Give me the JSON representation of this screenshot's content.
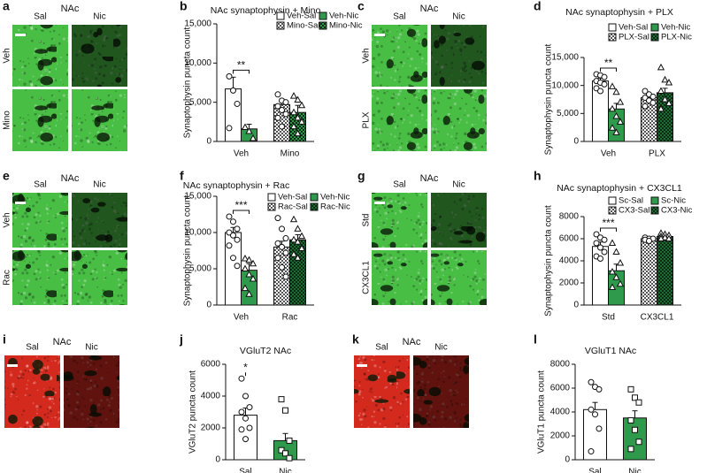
{
  "panels": [
    {
      "letter": "a",
      "region": "NAc",
      "columns": [
        "Sal",
        "Nic"
      ],
      "rows": [
        "Veh",
        "Mino"
      ],
      "color": "#49be45"
    },
    {
      "letter": "c",
      "region": "NAc",
      "columns": [
        "Sal",
        "Nic"
      ],
      "rows": [
        "Veh",
        "PLX"
      ],
      "color": "#49be45"
    },
    {
      "letter": "e",
      "region": "NAc",
      "columns": [
        "Sal",
        "Nic"
      ],
      "rows": [
        "Veh",
        "Rac"
      ],
      "color": "#49be45"
    },
    {
      "letter": "g",
      "region": "NAc",
      "columns": [
        "Sal",
        "Nic"
      ],
      "rows": [
        "Std",
        "CX3CL1"
      ],
      "color": "#49be45"
    },
    {
      "letter": "i",
      "region": "NAc",
      "columns": [
        "Sal",
        "Nic"
      ],
      "color": "#d42a1e"
    },
    {
      "letter": "k",
      "region": "NAc",
      "columns": [
        "Sal",
        "Nic"
      ],
      "color": "#d42a1e"
    }
  ],
  "chart_data": [
    {
      "type": "bar",
      "letter": "b",
      "title": "NAc synaptophysin + Mino",
      "y_label": "Synaptophysin puncta count",
      "categories": [
        "Veh",
        "Mino"
      ],
      "significance": "**",
      "ylim": [
        0,
        15000
      ],
      "yticks": [
        0,
        {
          "value": 5000,
          "label": "5,000"
        },
        {
          "value": 10000,
          "label": "10,000"
        },
        {
          "value": 15000,
          "label": "15,000"
        }
      ],
      "series": [
        {
          "name": "Veh-Sal",
          "color": "#ffffff",
          "marker": "circle",
          "values": [
            6700,
            null
          ],
          "errors": [
            1500,
            null
          ],
          "points": [
            [
              8300,
              6500,
              4800,
              1700
            ],
            null
          ]
        },
        {
          "name": "Veh-Nic",
          "color": "#2f9a4c",
          "marker": "triangle",
          "values": [
            1600,
            null
          ],
          "errors": [
            600,
            null
          ],
          "points": [
            [
              1800,
              1300,
              400
            ],
            null
          ]
        },
        {
          "name": "Mino-Sal",
          "color": "#ffffff",
          "pattern": "checker",
          "marker": "circle",
          "values": [
            null,
            4700
          ],
          "errors": [
            null,
            700
          ],
          "points": [
            null,
            [
              6000,
              5200,
              5000,
              4500,
              4000,
              3500,
              3000,
              1900
            ]
          ]
        },
        {
          "name": "Mino-Nic",
          "color": "#2f9a4c",
          "pattern": "checker",
          "marker": "triangle",
          "values": [
            null,
            3700
          ],
          "errors": [
            null,
            900
          ],
          "points": [
            null,
            [
              5800,
              5300,
              4600,
              3700,
              3000,
              2500,
              1900,
              1000
            ]
          ]
        }
      ]
    },
    {
      "type": "bar",
      "letter": "d",
      "title": "NAc synaptophysin + PLX",
      "y_label": "Synaptophysin puncta count",
      "categories": [
        "Veh",
        "PLX"
      ],
      "significance": "**",
      "ylim": [
        0,
        15000
      ],
      "yticks": [
        0,
        {
          "value": 5000,
          "label": "5,000"
        },
        {
          "value": 10000,
          "label": "10,000"
        },
        {
          "value": 15000,
          "label": "15,000"
        }
      ],
      "series": [
        {
          "name": "Veh-Sal",
          "color": "#ffffff",
          "marker": "circle",
          "values": [
            10800,
            null
          ],
          "errors": [
            500,
            null
          ],
          "points": [
            [
              12000,
              11800,
              11500,
              10800,
              10500,
              10200,
              9500,
              9000
            ],
            null
          ]
        },
        {
          "name": "Veh-Nic",
          "color": "#2f9a4c",
          "marker": "triangle",
          "values": [
            5800,
            null
          ],
          "errors": [
            1000,
            null
          ],
          "points": [
            [
              9800,
              8800,
              7000,
              5800,
              4500,
              3500,
              2400,
              1600
            ],
            null
          ]
        },
        {
          "name": "PLX-Sal",
          "color": "#ffffff",
          "pattern": "checker",
          "marker": "circle",
          "values": [
            null,
            7800
          ],
          "errors": [
            null,
            500
          ],
          "points": [
            null,
            [
              9000,
              8400,
              8000,
              7800,
              7300,
              6900,
              6300
            ]
          ]
        },
        {
          "name": "PLX-Nic",
          "color": "#1e6b33",
          "pattern": "checker",
          "marker": "triangle",
          "values": [
            null,
            8700
          ],
          "errors": [
            null,
            800
          ],
          "points": [
            null,
            [
              13200,
              11000,
              10500,
              9000,
              7500,
              6800,
              5800
            ]
          ]
        }
      ]
    },
    {
      "type": "bar",
      "letter": "f",
      "title": "NAc synaptophysin + Rac",
      "y_label": "Synaptophysin puncta  count",
      "categories": [
        "Veh",
        "Rac"
      ],
      "significance": "***",
      "ylim": [
        0,
        15000
      ],
      "yticks": [
        0,
        {
          "value": 5000,
          "label": "5,000"
        },
        {
          "value": 10000,
          "label": "10,000"
        },
        {
          "value": 15000,
          "label": "15,000"
        }
      ],
      "series": [
        {
          "name": "Veh-Sal",
          "color": "#ffffff",
          "marker": "circle",
          "values": [
            10000,
            null
          ],
          "errors": [
            700,
            null
          ],
          "points": [
            [
              12200,
              11500,
              10500,
              10000,
              9600,
              9000,
              8200,
              6500,
              5400
            ],
            null
          ]
        },
        {
          "name": "Veh-Nic",
          "color": "#2f9a4c",
          "marker": "triangle",
          "values": [
            4800,
            null
          ],
          "errors": [
            900,
            null
          ],
          "points": [
            [
              6400,
              6200,
              5700,
              5000,
              4200,
              3600,
              2300,
              1500
            ],
            null
          ]
        },
        {
          "name": "Rac-Sal",
          "color": "#ffffff",
          "pattern": "checker",
          "marker": "circle",
          "values": [
            null,
            8000
          ],
          "errors": [
            null,
            800
          ],
          "points": [
            null,
            [
              12000,
              10500,
              9200,
              8500,
              8000,
              7200,
              6500,
              5200,
              3900
            ]
          ]
        },
        {
          "name": "Rac-Nic",
          "color": "#1e6b33",
          "pattern": "checker",
          "marker": "triangle",
          "values": [
            null,
            9000
          ],
          "errors": [
            null,
            700
          ],
          "points": [
            null,
            [
              11800,
              10500,
              9500,
              9000,
              8700,
              7800,
              7000,
              6500
            ]
          ]
        }
      ]
    },
    {
      "type": "bar",
      "letter": "h",
      "title": "NAc synaptophysin + CX3CL1",
      "y_label": "Synaptophysin puncta count",
      "categories": [
        "Std",
        "CX3CL1"
      ],
      "significance": "***",
      "ylim": [
        0,
        8000
      ],
      "yticks": [
        0,
        2000,
        4000,
        6000,
        8000
      ],
      "series": [
        {
          "name": "Sc-Sal",
          "color": "#ffffff",
          "marker": "circle",
          "values": [
            5300,
            null
          ],
          "errors": [
            400,
            null
          ],
          "points": [
            [
              6400,
              6100,
              5900,
              5600,
              5200,
              4800,
              4400,
              4200
            ],
            null
          ]
        },
        {
          "name": "Sc-Nic",
          "color": "#2f9a4c",
          "marker": "triangle",
          "values": [
            3100,
            null
          ],
          "errors": [
            600,
            null
          ],
          "points": [
            [
              5600,
              4800,
              3800,
              3000,
              2500,
              1900,
              1600
            ],
            null
          ]
        },
        {
          "name": "CX3-Sal",
          "color": "#ffffff",
          "pattern": "checker",
          "marker": "circle",
          "values": [
            null,
            6000
          ],
          "errors": [
            null,
            100
          ],
          "points": [
            null,
            [
              6100,
              6000,
              6000,
              5900,
              5800
            ]
          ]
        },
        {
          "name": "CX3-Nic",
          "color": "#1e6b33",
          "pattern": "checker",
          "marker": "triangle",
          "values": [
            null,
            6200
          ],
          "errors": [
            null,
            100
          ],
          "points": [
            null,
            [
              6500,
              6400,
              6300,
              6200,
              6100,
              6000,
              6000
            ]
          ]
        }
      ]
    },
    {
      "type": "bar",
      "letter": "j",
      "title": "VGluT2 NAc",
      "y_label": "VGluT2 puncta count",
      "categories": [
        "Sal",
        "Nic"
      ],
      "significance": "*",
      "ylim": [
        0,
        6000
      ],
      "yticks": [
        0,
        2000,
        4000,
        6000
      ],
      "values": [
        2800,
        1200
      ],
      "errors": [
        450,
        450
      ],
      "colors": [
        "#ffffff",
        "#2f9a4c"
      ],
      "markers": [
        "circle",
        "square"
      ],
      "points": [
        [
          5100,
          4000,
          3300,
          3000,
          2600,
          2000,
          1900,
          1300
        ],
        [
          3800,
          3100,
          1200,
          600,
          400,
          100
        ]
      ]
    },
    {
      "type": "bar",
      "letter": "l",
      "title": "VGluT1 NAc",
      "y_label": "VGluT1 puncta count",
      "categories": [
        "Sal",
        "Nic"
      ],
      "ylim": [
        0,
        8000
      ],
      "yticks": [
        0,
        2000,
        4000,
        6000,
        8000
      ],
      "values": [
        4200,
        3500
      ],
      "errors": [
        600,
        600
      ],
      "colors": [
        "#ffffff",
        "#2f9a4c"
      ],
      "markers": [
        "circle",
        "square"
      ],
      "points": [
        [
          6500,
          6100,
          5900,
          4200,
          3800,
          2600,
          700
        ],
        [
          5900,
          5200,
          4800,
          3300,
          2500,
          1500,
          900
        ]
      ]
    }
  ]
}
